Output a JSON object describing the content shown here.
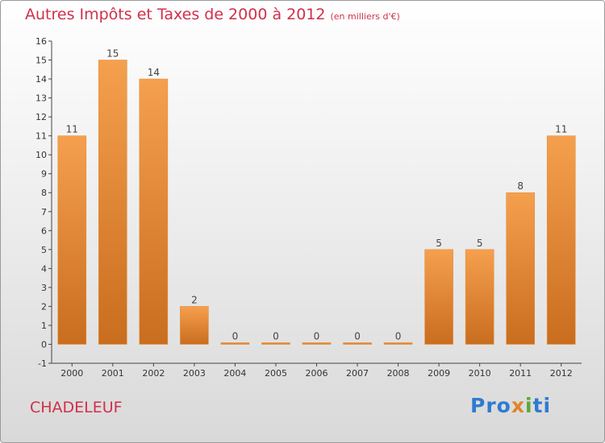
{
  "header": {
    "title": "Autres Impôts et Taxes de 2000 à 2012",
    "unit": "(en milliers d'€)"
  },
  "footer": {
    "commune": "CHADELEUF",
    "logo": {
      "p1": "Pro",
      "p2": "x",
      "p3": "i",
      "p4": "ti"
    }
  },
  "colors": {
    "bar_light": "#f5a04e",
    "bar_dark": "#c96d1e",
    "title": "#d0304a"
  },
  "chart_data": {
    "type": "bar",
    "title": "Autres Impôts et Taxes de 2000 à 2012",
    "subtitle": "(en milliers d'€)",
    "xlabel": "",
    "ylabel": "",
    "categories": [
      "2000",
      "2001",
      "2002",
      "2003",
      "2004",
      "2005",
      "2006",
      "2007",
      "2008",
      "2009",
      "2010",
      "2011",
      "2012"
    ],
    "values": [
      11,
      15,
      14,
      2,
      0,
      0,
      0,
      0,
      0,
      5,
      5,
      8,
      11
    ],
    "ylim": [
      -1,
      16
    ],
    "yticks": [
      -1,
      0,
      1,
      2,
      3,
      4,
      5,
      6,
      7,
      8,
      9,
      10,
      11,
      12,
      13,
      14,
      15,
      16
    ],
    "grid": false,
    "legend": "none"
  }
}
